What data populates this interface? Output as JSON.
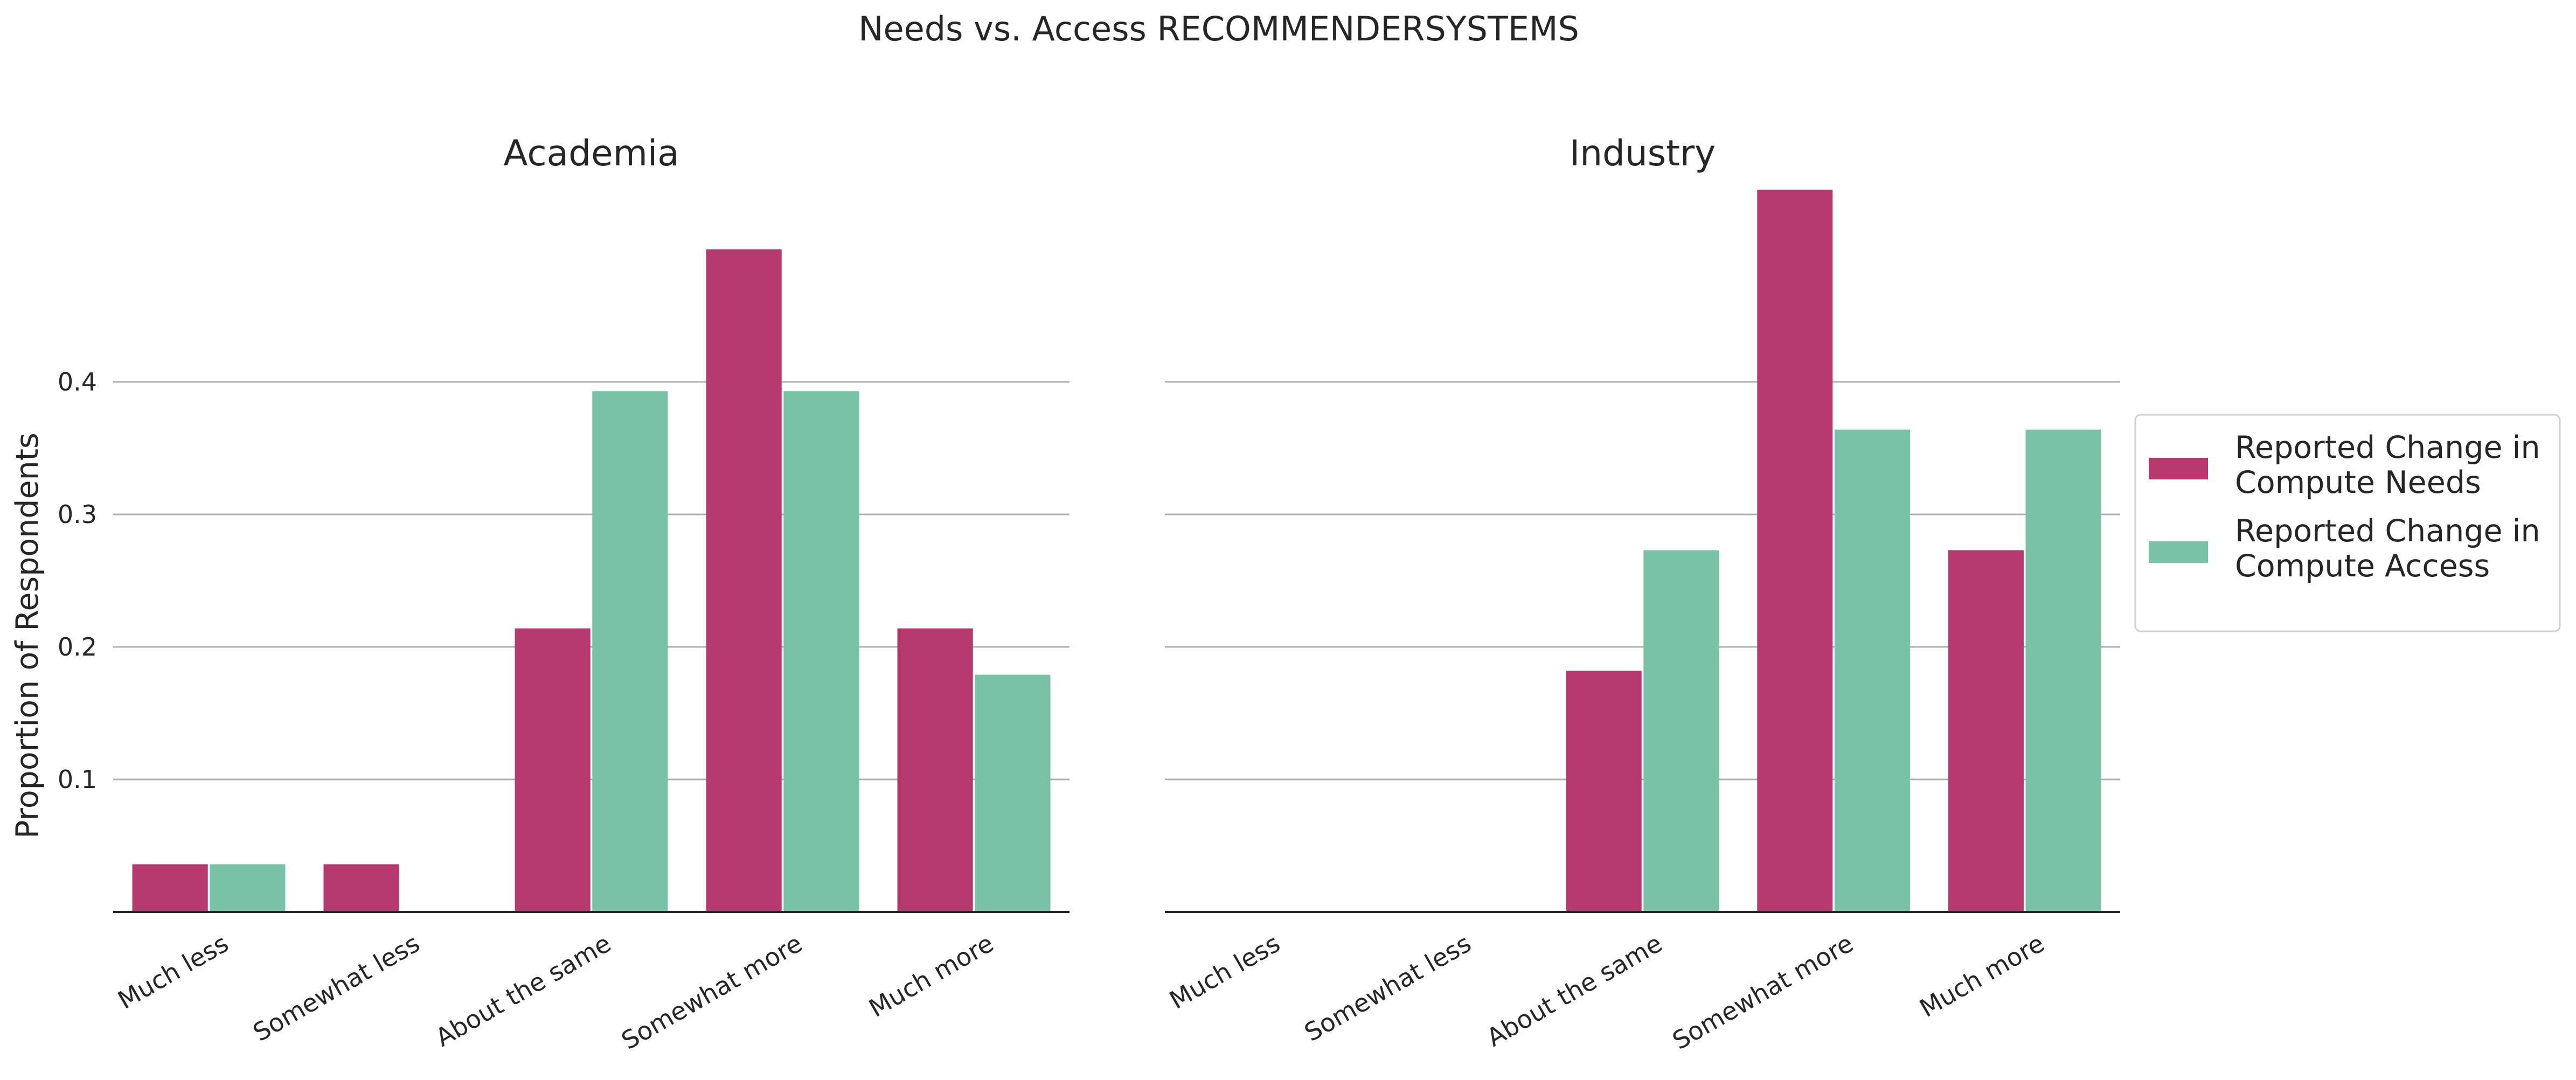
{
  "chart_data": {
    "type": "bar",
    "title": "Needs vs. Access RECOMMENDERSYSTEMS",
    "ylabel": "Proportion of Respondents",
    "categories": [
      "Much less",
      "Somewhat less",
      "About the same",
      "Somewhat more",
      "Much more"
    ],
    "yticks": [
      "0.1",
      "0.2",
      "0.3",
      "0.4"
    ],
    "ylim": [
      0,
      0.55
    ],
    "grid": "horizontal",
    "legend_position": "right",
    "legend": [
      {
        "line1": "Reported Change in",
        "line2": "Compute Needs",
        "color": "#b5396c"
      },
      {
        "line1": "Reported Change in",
        "line2": "Compute Access",
        "color": "#78c3a5"
      }
    ],
    "panels": [
      {
        "title": "Academia",
        "series": [
          {
            "name": "Reported Change in Compute Needs",
            "values": [
              0.036,
              0.036,
              0.214,
              0.5,
              0.214
            ]
          },
          {
            "name": "Reported Change in Compute Access",
            "values": [
              0.036,
              0.0,
              0.393,
              0.393,
              0.179
            ]
          }
        ]
      },
      {
        "title": "Industry",
        "series": [
          {
            "name": "Reported Change in Compute Needs",
            "values": [
              0.0,
              0.0,
              0.182,
              0.545,
              0.273
            ]
          },
          {
            "name": "Reported Change in Compute Access",
            "values": [
              0.0,
              0.0,
              0.273,
              0.364,
              0.364
            ]
          }
        ]
      }
    ]
  }
}
